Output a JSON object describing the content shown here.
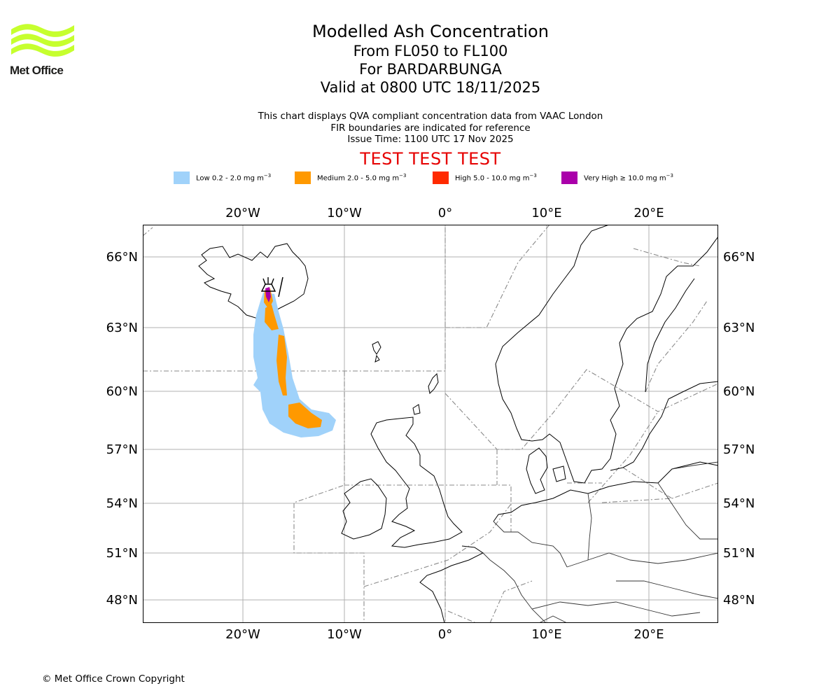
{
  "logo": {
    "text": "Met Office",
    "accent": "#c6ff2e"
  },
  "title": {
    "line1": "Modelled Ash Concentration",
    "line2": "From FL050 to FL100",
    "line3": "For BARDARBUNGA",
    "line4": "Valid at 0800 UTC 18/11/2025"
  },
  "notes": {
    "line1": "This chart displays QVA compliant concentration data from VAAC London",
    "line2": "FIR boundaries are indicated for reference",
    "line3": "Issue Time: 1100 UTC 17 Nov 2025"
  },
  "watermark": {
    "text": "TEST TEST TEST",
    "color": "#e60000"
  },
  "legend": [
    {
      "id": "low",
      "label": "Low 0.2 - 2.0 mg m",
      "exp": "−3",
      "color": "#a0d2fa"
    },
    {
      "id": "medium",
      "label": "Medium 2.0 - 5.0 mg m",
      "exp": "−3",
      "color": "#ff9900"
    },
    {
      "id": "high",
      "label": "High 5.0 - 10.0 mg m",
      "exp": "−3",
      "color": "#ff2a00"
    },
    {
      "id": "very-high",
      "label": "Very High  ≥  10.0 mg m",
      "exp": "−3",
      "color": "#aa00aa"
    }
  ],
  "map": {
    "lon_labels": [
      "20°W",
      "10°W",
      "0°",
      "10°E",
      "20°E"
    ],
    "lat_labels": [
      "66°N",
      "63°N",
      "60°N",
      "57°N",
      "54°N",
      "51°N",
      "48°N"
    ]
  },
  "copyright": "© Met Office Crown Copyright"
}
